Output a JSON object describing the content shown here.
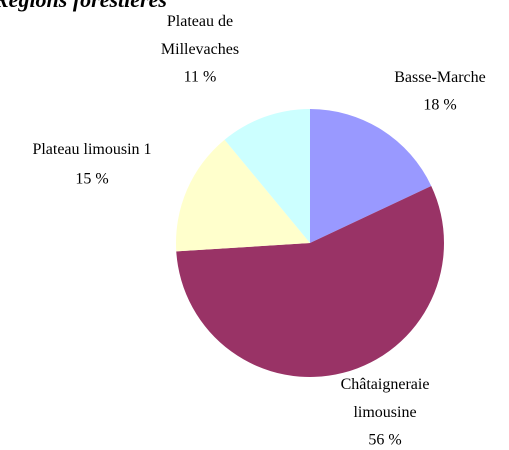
{
  "chart_data": {
    "type": "pie",
    "title": "Régions forestières",
    "categories": [
      "Basse-Marche",
      "Châtaigneraie limousine",
      "Plateau limousin 1",
      "Plateau de Millevaches"
    ],
    "values": [
      18,
      56,
      15,
      11
    ],
    "value_labels": [
      "18 %",
      "56 %",
      "15 %",
      "11 %"
    ],
    "colors": [
      "#9999ff",
      "#993366",
      "#ffffcc",
      "#ccffff"
    ]
  }
}
